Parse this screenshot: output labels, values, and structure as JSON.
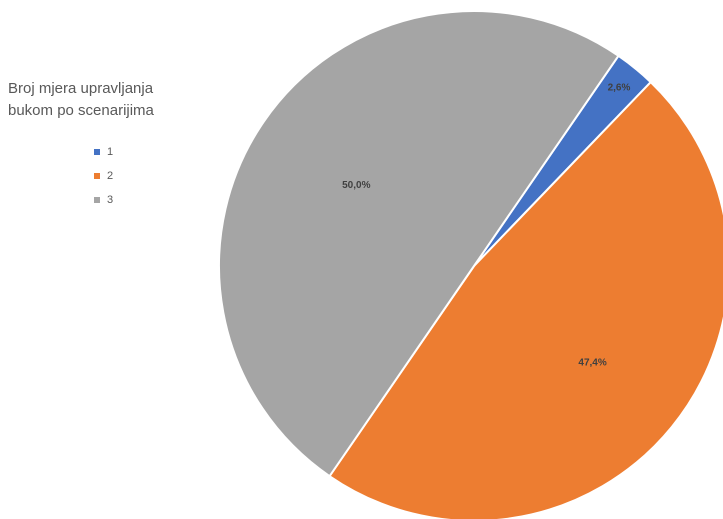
{
  "chart_data": {
    "type": "pie",
    "title": "Broj mjera upravljanja bukom po scenarijima",
    "title_lines": [
      "Broj mjera upravljanja",
      "bukom po scenarijima"
    ],
    "legend_position": "left",
    "slices": [
      {
        "label": "1",
        "value": 2.6,
        "display": "2,6%",
        "color": "#4472C4"
      },
      {
        "label": "2",
        "value": 47.4,
        "display": "47,4%",
        "color": "#ED7D31"
      },
      {
        "label": "3",
        "value": 50.0,
        "display": "50,0%",
        "color": "#A5A5A5"
      }
    ]
  }
}
